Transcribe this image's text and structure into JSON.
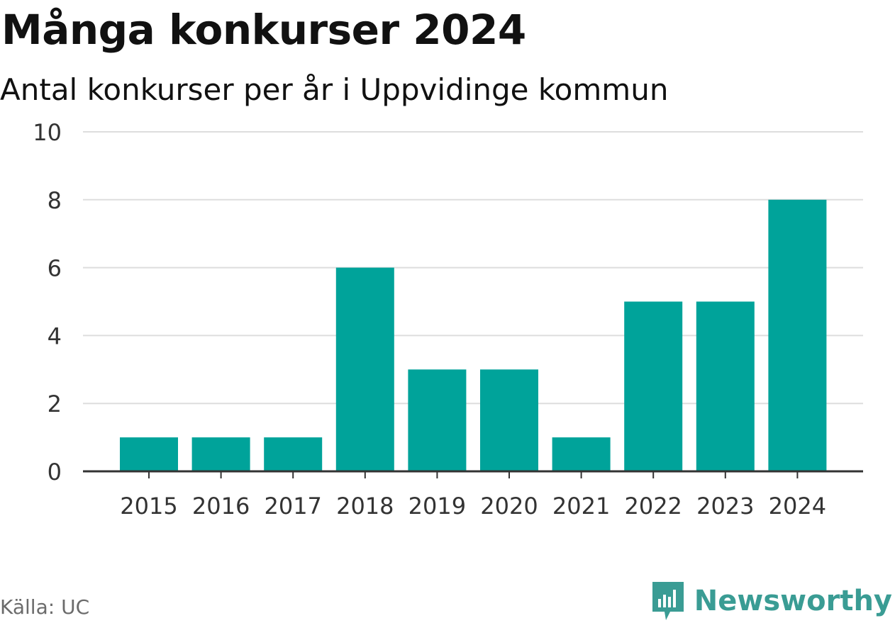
{
  "title": "Många konkurser 2024",
  "subtitle": "Antal konkurser per år i Uppvidinge kommun",
  "source": "Källa: UC",
  "brand": "Newsworthy",
  "colors": {
    "bar": "#00a39a",
    "grid": "#dddddd",
    "axis": "#333333",
    "brand": "#3a9c94"
  },
  "chart_data": {
    "type": "bar",
    "categories": [
      "2015",
      "2016",
      "2017",
      "2018",
      "2019",
      "2020",
      "2021",
      "2022",
      "2023",
      "2024"
    ],
    "values": [
      1,
      1,
      1,
      6,
      3,
      3,
      1,
      5,
      5,
      8
    ],
    "ylim": [
      0,
      10
    ],
    "yticks": [
      0,
      2,
      4,
      6,
      8,
      10
    ],
    "grid": true,
    "legend": "none"
  }
}
